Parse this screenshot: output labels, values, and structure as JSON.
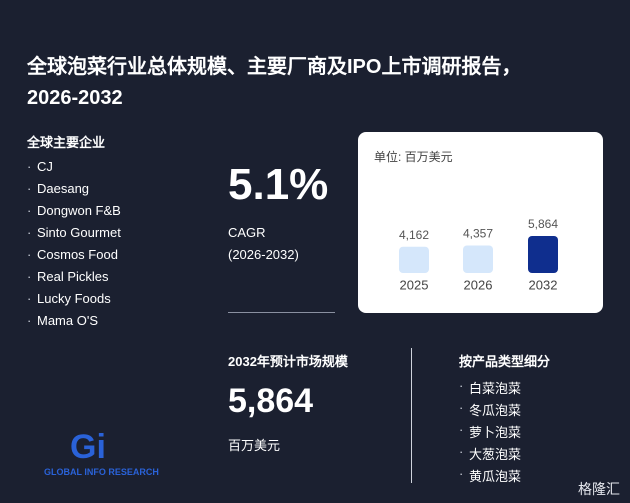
{
  "title": "全球泡菜行业总体规模、主要厂商及IPO上市调研报告，2026-2032",
  "companies": {
    "heading": "全球主要企业",
    "items": [
      "CJ",
      "Daesang",
      "Dongwon F&B",
      "Sinto Gourmet",
      "Cosmos Food",
      "Real Pickles",
      "Lucky Foods",
      "Mama O'S"
    ]
  },
  "cagr": {
    "value": "5.1%",
    "label": "CAGR",
    "period": "(2026-2032)"
  },
  "chart_data": {
    "type": "bar",
    "unit": "单位: 百万美元",
    "categories": [
      "2025",
      "2026",
      "2032"
    ],
    "values": [
      4162,
      4357,
      5864
    ],
    "value_labels": [
      "4,162",
      "4,357",
      "5,864"
    ],
    "colors": [
      "#d5e7fb",
      "#d5e7fb",
      "#0f2e8e"
    ]
  },
  "market": {
    "heading": "2032年预计市场规模",
    "value": "5,864",
    "unit": "百万美元"
  },
  "segments": {
    "heading": "按产品类型细分",
    "items": [
      "白菜泡菜",
      "冬瓜泡菜",
      "萝卜泡菜",
      "大葱泡菜",
      "黄瓜泡菜"
    ]
  },
  "logo": "GLOBAL INFO RESEARCH",
  "watermark": "格隆汇"
}
